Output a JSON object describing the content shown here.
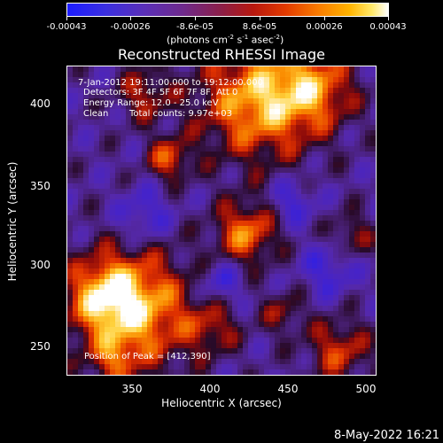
{
  "colorbar": {
    "ticks": [
      "-0.00043",
      "-0.00026",
      "-8.6e-05",
      "8.6e-05",
      "0.00026",
      "0.00043"
    ],
    "units": {
      "prefix": "(photons cm",
      "exp1": "-2",
      "mid1": " s",
      "exp2": "-1",
      "mid2": " asec",
      "exp3": "-2",
      "suffix": ")"
    }
  },
  "title": "Reconstructed RHESSI Image",
  "overlay": {
    "time": "7-Jan-2012 19:11:00.000 to 19:12:00.000",
    "detectors": "Detectors: 3F 4F 5F 6F 7F 8F, Att 0",
    "energy": "Energy Range: 12.0 - 25.0 keV",
    "clean": "Clean",
    "counts": "Total counts: 9.97e+03",
    "peak": "Position of Peak = [412,390]"
  },
  "axes": {
    "xlabel": "Heliocentric X (arcsec)",
    "ylabel": "Heliocentric Y (arcsec)",
    "xticks": [
      "350",
      "400",
      "450",
      "500"
    ],
    "yticks": [
      "400",
      "350",
      "300",
      "250"
    ]
  },
  "footer": "8-May-2022 16:21",
  "colors": {
    "background": "#000000",
    "map_base": "#4b2396",
    "hot": "#ffffff",
    "cold": "#1c1cff"
  }
}
